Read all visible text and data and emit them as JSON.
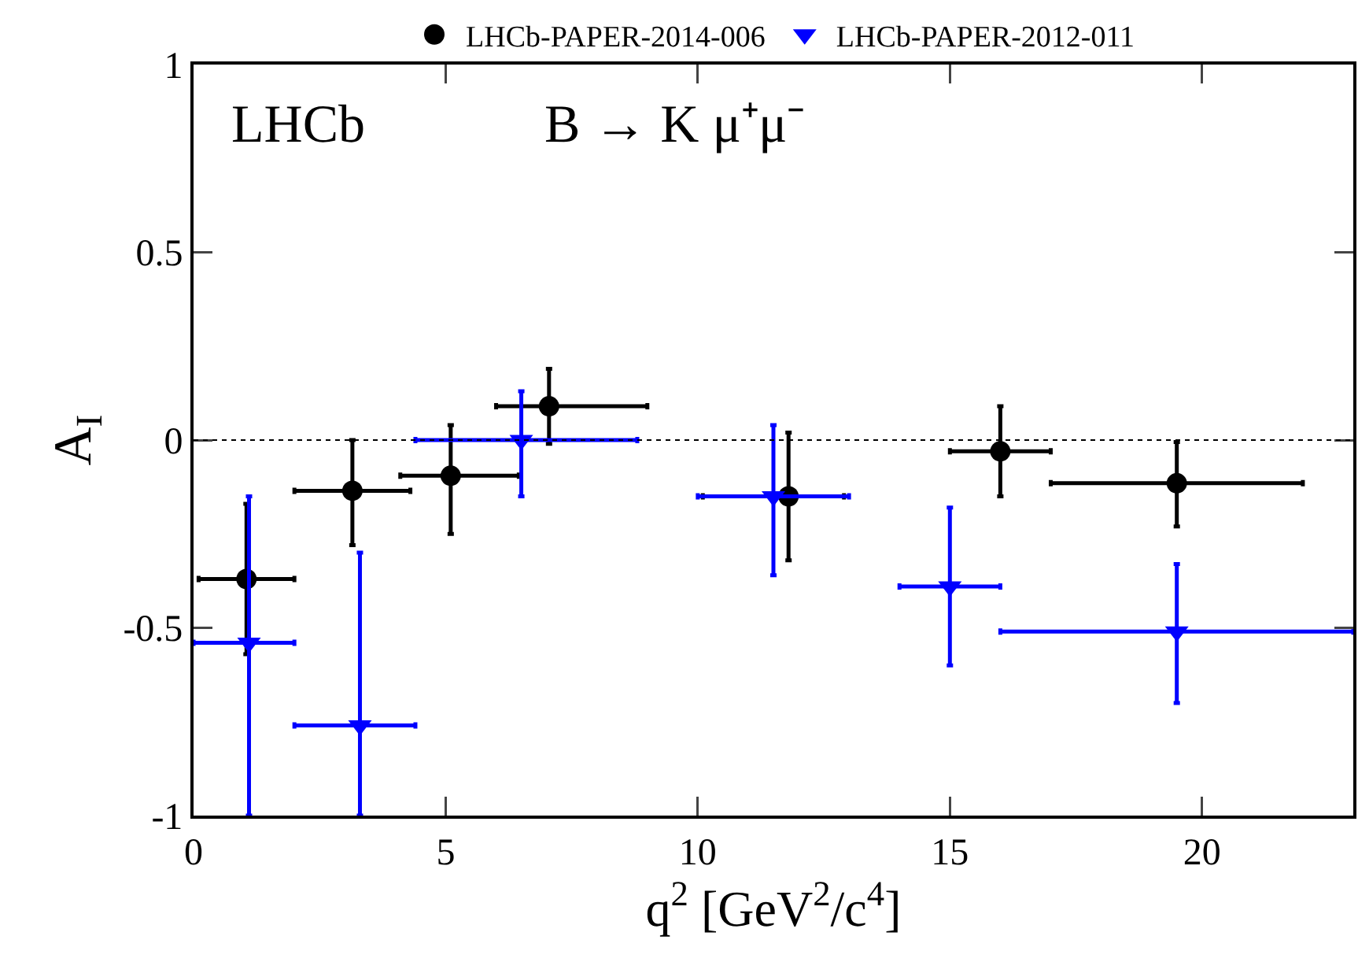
{
  "chart_data": {
    "type": "scatter",
    "xlabel": "q$^{2}$ [GeV$^{2}$/c$^{4}$]",
    "ylabel": "A$_{I}$",
    "annotations": [
      "LHCb",
      "B → K μ⁺μ⁻"
    ],
    "xlim": [
      0,
      23
    ],
    "xticks": [
      0,
      5,
      10,
      15,
      20
    ],
    "ylim": [
      -1,
      1
    ],
    "yticks": [
      -1,
      -0.5,
      0,
      0.5,
      1
    ],
    "grid": false,
    "legend": "top",
    "line_style": "none",
    "ref_lines": [
      {
        "axis": "y",
        "value": 0,
        "color": "#000000",
        "line_style": "dotted"
      }
    ],
    "series": [
      {
        "name": "LHCb-PAPER-2014-006",
        "color": "#000000",
        "marker": "circle",
        "x": [
          1.05,
          3.15,
          5.1,
          7.05,
          11.8,
          16.0,
          19.5
        ],
        "values": [
          -0.37,
          -0.135,
          -0.095,
          0.09,
          -0.15,
          -0.03,
          -0.115
        ],
        "errors": [
          [
            -0.57,
            -0.17
          ],
          [
            -0.28,
            0.0
          ],
          [
            -0.25,
            0.04
          ],
          [
            -0.01,
            0.19
          ],
          [
            -0.32,
            0.02
          ],
          [
            -0.15,
            0.09
          ],
          [
            -0.23,
            -0.005
          ]
        ],
        "xerrors": [
          [
            0.1,
            2
          ],
          [
            2,
            4.3
          ],
          [
            4.1,
            6.45
          ],
          [
            6.0,
            9.0
          ],
          [
            10.1,
            12.9
          ],
          [
            15,
            17
          ],
          [
            17,
            22
          ]
        ]
      },
      {
        "name": "LHCb-PAPER-2012-011",
        "color": "#0000ff",
        "marker": "triangle",
        "x": [
          1.1,
          3.3,
          6.5,
          11.5,
          15,
          19.5
        ],
        "values": [
          -0.54,
          -0.76,
          0.0,
          -0.15,
          -0.39,
          -0.51
        ],
        "errors": [
          [
            -1,
            -0.15
          ],
          [
            -1,
            -0.3
          ],
          [
            -0.15,
            0.13
          ],
          [
            -0.36,
            0.04
          ],
          [
            -0.6,
            -0.18
          ],
          [
            -0.7,
            -0.33
          ]
        ],
        "xerrors": [
          [
            0,
            2
          ],
          [
            2,
            4.4
          ],
          [
            4.4,
            8.8
          ],
          [
            10,
            13
          ],
          [
            14,
            16
          ],
          [
            16,
            23
          ]
        ]
      }
    ]
  }
}
